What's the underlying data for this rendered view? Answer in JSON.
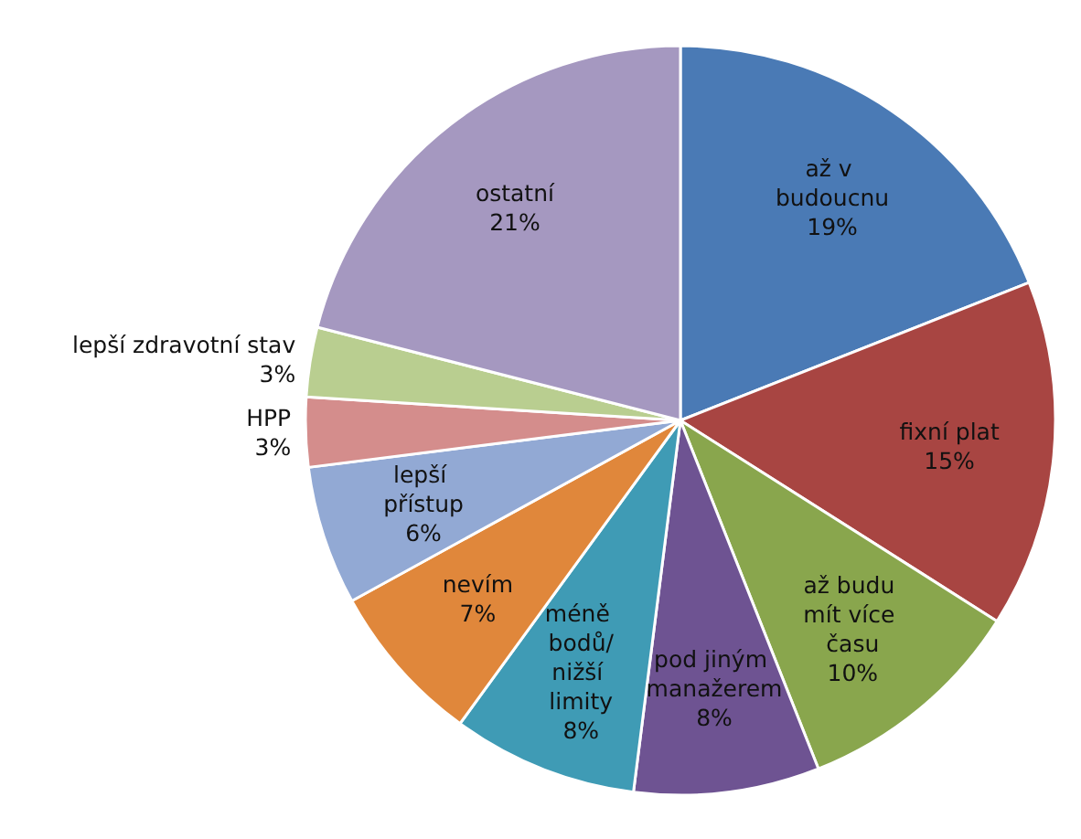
{
  "chart_data": {
    "type": "pie",
    "categories": [
      "až v budoucnu",
      "fixní plat",
      "až budu mít více času",
      "pod jiným manažerem",
      "méně bodů/nižší limity",
      "nevím",
      "lepší přístup",
      "HPP",
      "lepší zdravotní stav",
      "ostatní"
    ],
    "values": [
      19,
      15,
      10,
      8,
      8,
      7,
      6,
      3,
      3,
      21
    ],
    "value_labels": [
      "19%",
      "15%",
      "10%",
      "8%",
      "8%",
      "7%",
      "6%",
      "3%",
      "3%",
      "21%"
    ],
    "colors": [
      "#4a7ab5",
      "#a84542",
      "#89a64d",
      "#6e5392",
      "#3f9bb5",
      "#e0873b",
      "#92a9d4",
      "#d48d8c",
      "#b9ce90",
      "#a598c0"
    ],
    "legend": false
  }
}
